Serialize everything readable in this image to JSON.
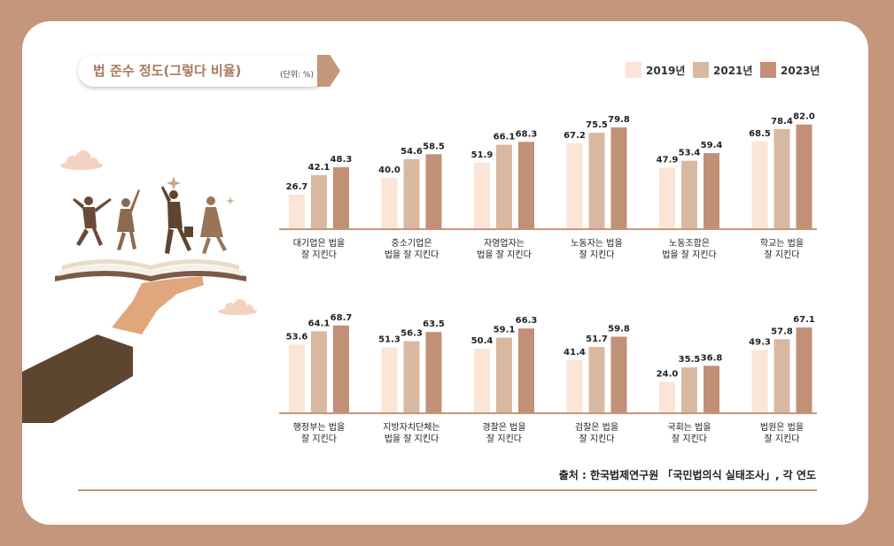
{
  "title": "법 준수 정도(그렇다 비율)",
  "unit": "(단위: %)",
  "source": "출처 : 한국법제연구원 「국민법의식 실태조사」, 각 연도",
  "colors": {
    "2019년": "#fae5d6",
    "2021년": "#d9b8a2",
    "2023년": "#c28f77",
    "baseline": "#c4967c",
    "frame": "#c4967c"
  },
  "chart_data": {
    "type": "bar",
    "series": [
      {
        "name": "2019년",
        "values": [
          26.7,
          40.0,
          51.9,
          67.2,
          47.9,
          68.5,
          53.6,
          51.3,
          50.4,
          41.4,
          24.0,
          49.3
        ]
      },
      {
        "name": "2021년",
        "values": [
          42.1,
          54.6,
          66.1,
          75.5,
          53.4,
          78.4,
          64.1,
          56.3,
          59.1,
          51.7,
          35.5,
          57.8
        ]
      },
      {
        "name": "2023년",
        "values": [
          48.3,
          58.5,
          68.3,
          79.8,
          59.4,
          82.0,
          68.7,
          63.5,
          66.3,
          59.8,
          36.8,
          67.1
        ]
      }
    ],
    "categories": [
      [
        "대기업은 법을",
        "잘 지킨다"
      ],
      [
        "중소기업은",
        "법을 잘 지킨다"
      ],
      [
        "자영업자는",
        "법을 잘 지킨다"
      ],
      [
        "노동자는 법을",
        "잘 지킨다"
      ],
      [
        "노동조합은",
        "법을 잘 지킨다"
      ],
      [
        "학교는 법을",
        "잘 지킨다"
      ],
      [
        "행정부는 법을",
        "잘 지킨다"
      ],
      [
        "지방자치단체는",
        "법을 잘 지킨다"
      ],
      [
        "경찰은 법을",
        "잘 지킨다"
      ],
      [
        "검찰은 법을",
        "잘 지킨다"
      ],
      [
        "국회는 법을",
        "잘 지킨다"
      ],
      [
        "법원은 법을",
        "잘 지킨다"
      ]
    ],
    "value_labels": "shown above bars",
    "legend_position": "top-right",
    "grid": false
  },
  "illustration": {
    "description_icons": [
      "hand-icon",
      "open-book-icon",
      "dancing-people-icon",
      "cloud-icon",
      "sparkle-icon"
    ]
  }
}
